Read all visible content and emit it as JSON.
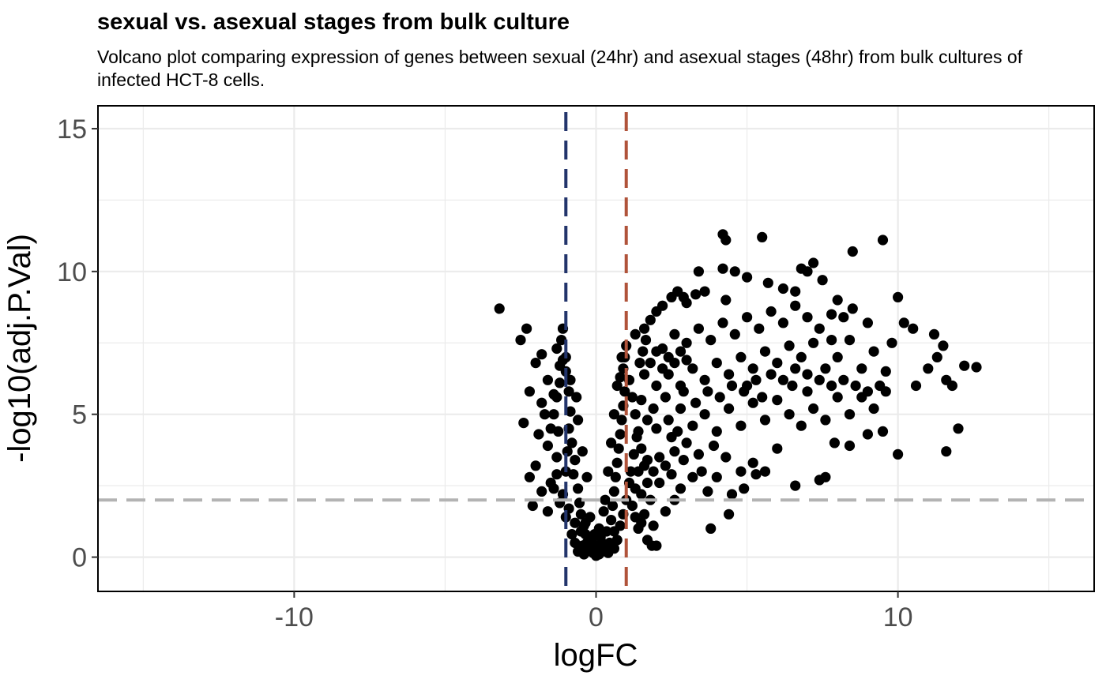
{
  "chart_data": {
    "type": "scatter",
    "title": "sexual vs. asexual stages from bulk culture",
    "subtitle": "Volcano plot comparing expression of genes between sexual (24hr) and asexual stages (48hr) from bulk cultures of infected HCT-8 cells.",
    "xlabel": "logFC",
    "ylabel": "-log10(adj.P.Val)",
    "xlim": [
      -16.5,
      16.5
    ],
    "ylim": [
      -1.2,
      15.8
    ],
    "x_ticks": [
      -10,
      0,
      10
    ],
    "x_tick_labels": [
      "-10",
      "0",
      "10"
    ],
    "y_ticks": [
      0,
      5,
      10,
      15
    ],
    "y_tick_labels": [
      "0",
      "5",
      "10",
      "15"
    ],
    "grid": true,
    "reference_lines": [
      {
        "orientation": "vertical",
        "value": -1,
        "color": "#22346b",
        "style": "dashed"
      },
      {
        "orientation": "vertical",
        "value": 1,
        "color": "#b0533a",
        "style": "dashed"
      },
      {
        "orientation": "horizontal",
        "value": 2,
        "color": "#b3b3b3",
        "style": "dashed"
      }
    ],
    "point_color": "#000000",
    "series": [
      {
        "points": [
          [
            -3.2,
            8.7
          ],
          [
            -2.3,
            8.0
          ],
          [
            -2.5,
            7.6
          ],
          [
            -1.8,
            7.1
          ],
          [
            -1.1,
            8.0
          ],
          [
            -1.15,
            7.6
          ],
          [
            -2.0,
            6.8
          ],
          [
            -1.6,
            6.2
          ],
          [
            -2.2,
            5.8
          ],
          [
            -1.8,
            5.4
          ],
          [
            -2.4,
            4.7
          ],
          [
            -1.9,
            4.3
          ],
          [
            -1.6,
            3.9
          ],
          [
            -2.0,
            3.2
          ],
          [
            -2.2,
            2.8
          ],
          [
            -1.5,
            2.6
          ],
          [
            -1.8,
            2.3
          ],
          [
            -1.3,
            2.9
          ],
          [
            -2.1,
            1.8
          ],
          [
            -1.6,
            1.6
          ],
          [
            -1.4,
            5.0
          ],
          [
            -1.3,
            5.6
          ],
          [
            -1.2,
            6.1
          ],
          [
            -1.2,
            6.7
          ],
          [
            -1.25,
            4.4
          ],
          [
            -1.0,
            6.5
          ],
          [
            -0.9,
            5.8
          ],
          [
            -0.85,
            5.1
          ],
          [
            -0.9,
            4.5
          ],
          [
            -0.8,
            4.0
          ],
          [
            -0.7,
            3.4
          ],
          [
            -0.75,
            2.9
          ],
          [
            -0.6,
            2.4
          ],
          [
            -0.55,
            1.9
          ],
          [
            -0.5,
            1.5
          ],
          [
            -0.4,
            1.1
          ],
          [
            -0.35,
            0.8
          ],
          [
            -0.3,
            0.5
          ],
          [
            -0.2,
            0.3
          ],
          [
            -0.1,
            0.15
          ],
          [
            0.0,
            0.05
          ],
          [
            0.1,
            0.1
          ],
          [
            0.2,
            0.2
          ],
          [
            0.3,
            0.35
          ],
          [
            -0.15,
            0.6
          ],
          [
            0.15,
            0.7
          ],
          [
            -0.45,
            0.4
          ],
          [
            0.45,
            0.5
          ],
          [
            0.6,
            0.9
          ],
          [
            0.05,
            0.4
          ],
          [
            0.5,
            1.3
          ],
          [
            0.55,
            1.8
          ],
          [
            0.6,
            2.3
          ],
          [
            0.65,
            2.8
          ],
          [
            0.7,
            3.3
          ],
          [
            0.75,
            3.8
          ],
          [
            0.8,
            4.3
          ],
          [
            0.85,
            4.8
          ],
          [
            0.9,
            5.3
          ],
          [
            0.95,
            5.8
          ],
          [
            0.8,
            6.3
          ],
          [
            0.9,
            6.6
          ],
          [
            0.95,
            7.0
          ],
          [
            1.0,
            7.4
          ],
          [
            0.85,
            7.0
          ],
          [
            0.7,
            6.0
          ],
          [
            0.6,
            5.0
          ],
          [
            0.5,
            4.0
          ],
          [
            0.4,
            3.0
          ],
          [
            0.3,
            2.0
          ],
          [
            -0.5,
            0.9
          ],
          [
            -0.7,
            1.2
          ],
          [
            -0.9,
            1.7
          ],
          [
            -1.1,
            2.2
          ],
          [
            -1.0,
            3.0
          ],
          [
            -0.95,
            3.7
          ],
          [
            -1.3,
            3.5
          ],
          [
            -1.5,
            4.5
          ],
          [
            -1.7,
            5.0
          ],
          [
            -1.4,
            5.7
          ],
          [
            -1.1,
            6.9
          ],
          [
            -1.3,
            7.3
          ],
          [
            -1.0,
            7.0
          ],
          [
            -0.85,
            6.2
          ],
          [
            -0.6,
            4.8
          ],
          [
            -0.65,
            5.6
          ],
          [
            -0.45,
            3.7
          ],
          [
            -0.3,
            2.8
          ],
          [
            -0.2,
            1.4
          ],
          [
            0.25,
            1.6
          ],
          [
            1.1,
            6.2
          ],
          [
            1.2,
            5.6
          ],
          [
            1.3,
            5.0
          ],
          [
            1.4,
            4.4
          ],
          [
            1.5,
            3.8
          ],
          [
            1.6,
            3.2
          ],
          [
            1.7,
            2.6
          ],
          [
            1.8,
            2.0
          ],
          [
            1.6,
            1.5
          ],
          [
            1.4,
            1.0
          ],
          [
            1.7,
            0.6
          ],
          [
            1.85,
            0.4
          ],
          [
            1.2,
            1.8
          ],
          [
            1.3,
            2.4
          ],
          [
            1.15,
            3.0
          ],
          [
            1.25,
            3.6
          ],
          [
            1.35,
            4.2
          ],
          [
            1.45,
            6.8
          ],
          [
            1.55,
            7.2
          ],
          [
            1.65,
            7.6
          ],
          [
            1.3,
            7.8
          ],
          [
            1.6,
            8.0
          ],
          [
            1.8,
            8.3
          ],
          [
            2.0,
            8.6
          ],
          [
            2.2,
            8.8
          ],
          [
            2.5,
            9.1
          ],
          [
            2.7,
            9.3
          ],
          [
            2.9,
            9.1
          ],
          [
            3.0,
            8.9
          ],
          [
            3.3,
            9.2
          ],
          [
            3.6,
            9.3
          ],
          [
            3.4,
            10.0
          ],
          [
            4.2,
            10.1
          ],
          [
            4.3,
            9.0
          ],
          [
            4.6,
            10.0
          ],
          [
            4.2,
            11.3
          ],
          [
            4.3,
            11.1
          ],
          [
            5.0,
            9.8
          ],
          [
            5.5,
            11.2
          ],
          [
            5.7,
            9.6
          ],
          [
            6.2,
            9.4
          ],
          [
            6.6,
            9.3
          ],
          [
            6.8,
            10.1
          ],
          [
            7.0,
            10.0
          ],
          [
            7.2,
            10.3
          ],
          [
            7.5,
            9.7
          ],
          [
            8.5,
            10.7
          ],
          [
            9.5,
            11.1
          ],
          [
            8.0,
            9.0
          ],
          [
            7.8,
            8.5
          ],
          [
            8.5,
            8.7
          ],
          [
            10.0,
            9.1
          ],
          [
            9.0,
            8.2
          ],
          [
            10.2,
            8.2
          ],
          [
            10.5,
            8.0
          ],
          [
            9.8,
            7.5
          ],
          [
            11.2,
            7.8
          ],
          [
            11.5,
            7.4
          ],
          [
            11.3,
            7.0
          ],
          [
            12.2,
            6.7
          ],
          [
            12.6,
            6.65
          ],
          [
            11.0,
            6.6
          ],
          [
            11.6,
            6.2
          ],
          [
            11.8,
            6.0
          ],
          [
            10.6,
            6.0
          ],
          [
            12.0,
            4.5
          ],
          [
            11.6,
            3.7
          ],
          [
            10.0,
            3.6
          ],
          [
            9.5,
            4.4
          ],
          [
            9.0,
            4.3
          ],
          [
            8.4,
            3.9
          ],
          [
            7.9,
            4.0
          ],
          [
            7.6,
            2.8
          ],
          [
            7.4,
            2.7
          ],
          [
            6.6,
            2.5
          ],
          [
            5.3,
            2.9
          ],
          [
            4.9,
            2.4
          ],
          [
            4.5,
            2.2
          ],
          [
            4.4,
            1.5
          ],
          [
            3.8,
            1.0
          ],
          [
            2.0,
            0.4
          ],
          [
            1.9,
            1.1
          ],
          [
            2.3,
            1.6
          ],
          [
            2.6,
            2.0
          ],
          [
            2.8,
            2.4
          ],
          [
            2.5,
            2.9
          ],
          [
            3.2,
            2.8
          ],
          [
            3.5,
            3.0
          ],
          [
            3.7,
            2.3
          ],
          [
            4.0,
            2.8
          ],
          [
            2.1,
            3.5
          ],
          [
            2.6,
            3.7
          ],
          [
            3.0,
            4.0
          ],
          [
            3.4,
            3.6
          ],
          [
            3.9,
            3.9
          ],
          [
            4.3,
            3.5
          ],
          [
            4.8,
            3.0
          ],
          [
            5.2,
            3.3
          ],
          [
            5.6,
            3.0
          ],
          [
            6.0,
            3.8
          ],
          [
            2.0,
            4.5
          ],
          [
            2.4,
            4.8
          ],
          [
            2.8,
            5.2
          ],
          [
            3.2,
            4.6
          ],
          [
            3.6,
            5.0
          ],
          [
            4.0,
            4.4
          ],
          [
            4.4,
            5.2
          ],
          [
            4.8,
            4.6
          ],
          [
            5.2,
            5.4
          ],
          [
            5.6,
            4.8
          ],
          [
            6.0,
            5.5
          ],
          [
            6.4,
            5.0
          ],
          [
            6.8,
            4.6
          ],
          [
            7.2,
            5.2
          ],
          [
            7.6,
            4.8
          ],
          [
            8.0,
            5.6
          ],
          [
            8.4,
            5.0
          ],
          [
            8.8,
            5.6
          ],
          [
            9.2,
            5.2
          ],
          [
            9.6,
            5.8
          ],
          [
            2.0,
            6.0
          ],
          [
            2.4,
            6.4
          ],
          [
            2.8,
            6.0
          ],
          [
            3.2,
            6.6
          ],
          [
            3.6,
            6.2
          ],
          [
            4.0,
            6.8
          ],
          [
            4.4,
            6.4
          ],
          [
            4.8,
            7.0
          ],
          [
            5.2,
            6.6
          ],
          [
            5.6,
            7.2
          ],
          [
            6.0,
            6.8
          ],
          [
            6.4,
            7.4
          ],
          [
            6.8,
            7.0
          ],
          [
            7.2,
            7.5
          ],
          [
            7.6,
            6.6
          ],
          [
            8.0,
            7.0
          ],
          [
            8.4,
            7.6
          ],
          [
            8.8,
            6.6
          ],
          [
            9.2,
            7.2
          ],
          [
            9.6,
            6.5
          ],
          [
            2.2,
            7.3
          ],
          [
            2.6,
            7.8
          ],
          [
            3.0,
            7.5
          ],
          [
            3.4,
            8.0
          ],
          [
            3.8,
            7.6
          ],
          [
            4.2,
            8.2
          ],
          [
            4.6,
            7.8
          ],
          [
            5.0,
            8.4
          ],
          [
            5.4,
            8.0
          ],
          [
            5.8,
            8.6
          ],
          [
            6.2,
            8.2
          ],
          [
            6.6,
            8.8
          ],
          [
            7.0,
            8.4
          ],
          [
            7.4,
            8.0
          ],
          [
            7.8,
            7.6
          ],
          [
            8.2,
            8.4
          ],
          [
            5.0,
            6.0
          ],
          [
            5.5,
            5.6
          ],
          [
            6.5,
            6.0
          ],
          [
            7.0,
            5.8
          ],
          [
            1.9,
            5.2
          ],
          [
            1.7,
            4.8
          ],
          [
            2.3,
            5.6
          ],
          [
            2.9,
            5.8
          ],
          [
            3.3,
            5.4
          ],
          [
            3.7,
            5.8
          ],
          [
            4.1,
            5.6
          ],
          [
            4.5,
            6.0
          ],
          [
            4.9,
            5.8
          ],
          [
            5.3,
            6.2
          ],
          [
            5.8,
            6.4
          ],
          [
            6.2,
            6.2
          ],
          [
            6.6,
            6.6
          ],
          [
            7.0,
            6.4
          ],
          [
            7.4,
            6.2
          ],
          [
            7.8,
            6.0
          ],
          [
            8.2,
            6.2
          ],
          [
            8.6,
            6.0
          ],
          [
            9.0,
            5.8
          ],
          [
            9.4,
            6.0
          ],
          [
            1.5,
            5.5
          ],
          [
            1.6,
            6.4
          ],
          [
            1.8,
            6.8
          ],
          [
            2.0,
            7.2
          ],
          [
            2.2,
            6.6
          ],
          [
            2.4,
            7.0
          ],
          [
            2.6,
            6.8
          ],
          [
            2.8,
            7.2
          ],
          [
            3.0,
            6.9
          ],
          [
            1.4,
            3.0
          ],
          [
            1.5,
            2.2
          ],
          [
            1.7,
            3.4
          ],
          [
            1.9,
            3.0
          ],
          [
            2.1,
            2.6
          ],
          [
            2.3,
            3.2
          ],
          [
            2.5,
            4.2
          ],
          [
            2.7,
            4.4
          ],
          [
            2.9,
            3.4
          ],
          [
            1.3,
            1.4
          ],
          [
            1.5,
            1.2
          ],
          [
            -0.6,
            0.2
          ],
          [
            -0.4,
            0.1
          ],
          [
            0.4,
            0.15
          ],
          [
            0.6,
            0.3
          ],
          [
            0.7,
            0.6
          ],
          [
            -0.7,
            0.5
          ],
          [
            -0.8,
            0.8
          ],
          [
            0.8,
            1.1
          ],
          [
            0.9,
            1.5
          ],
          [
            1.0,
            2.0
          ],
          [
            1.1,
            2.6
          ],
          [
            -1.0,
            1.4
          ],
          [
            -1.2,
            1.9
          ],
          [
            -1.4,
            2.4
          ],
          [
            0.2,
            0.5
          ],
          [
            -0.25,
            0.25
          ],
          [
            0.35,
            0.9
          ],
          [
            -0.35,
            1.2
          ],
          [
            0.1,
            1.0
          ],
          [
            -0.05,
            0.8
          ]
        ]
      }
    ]
  }
}
